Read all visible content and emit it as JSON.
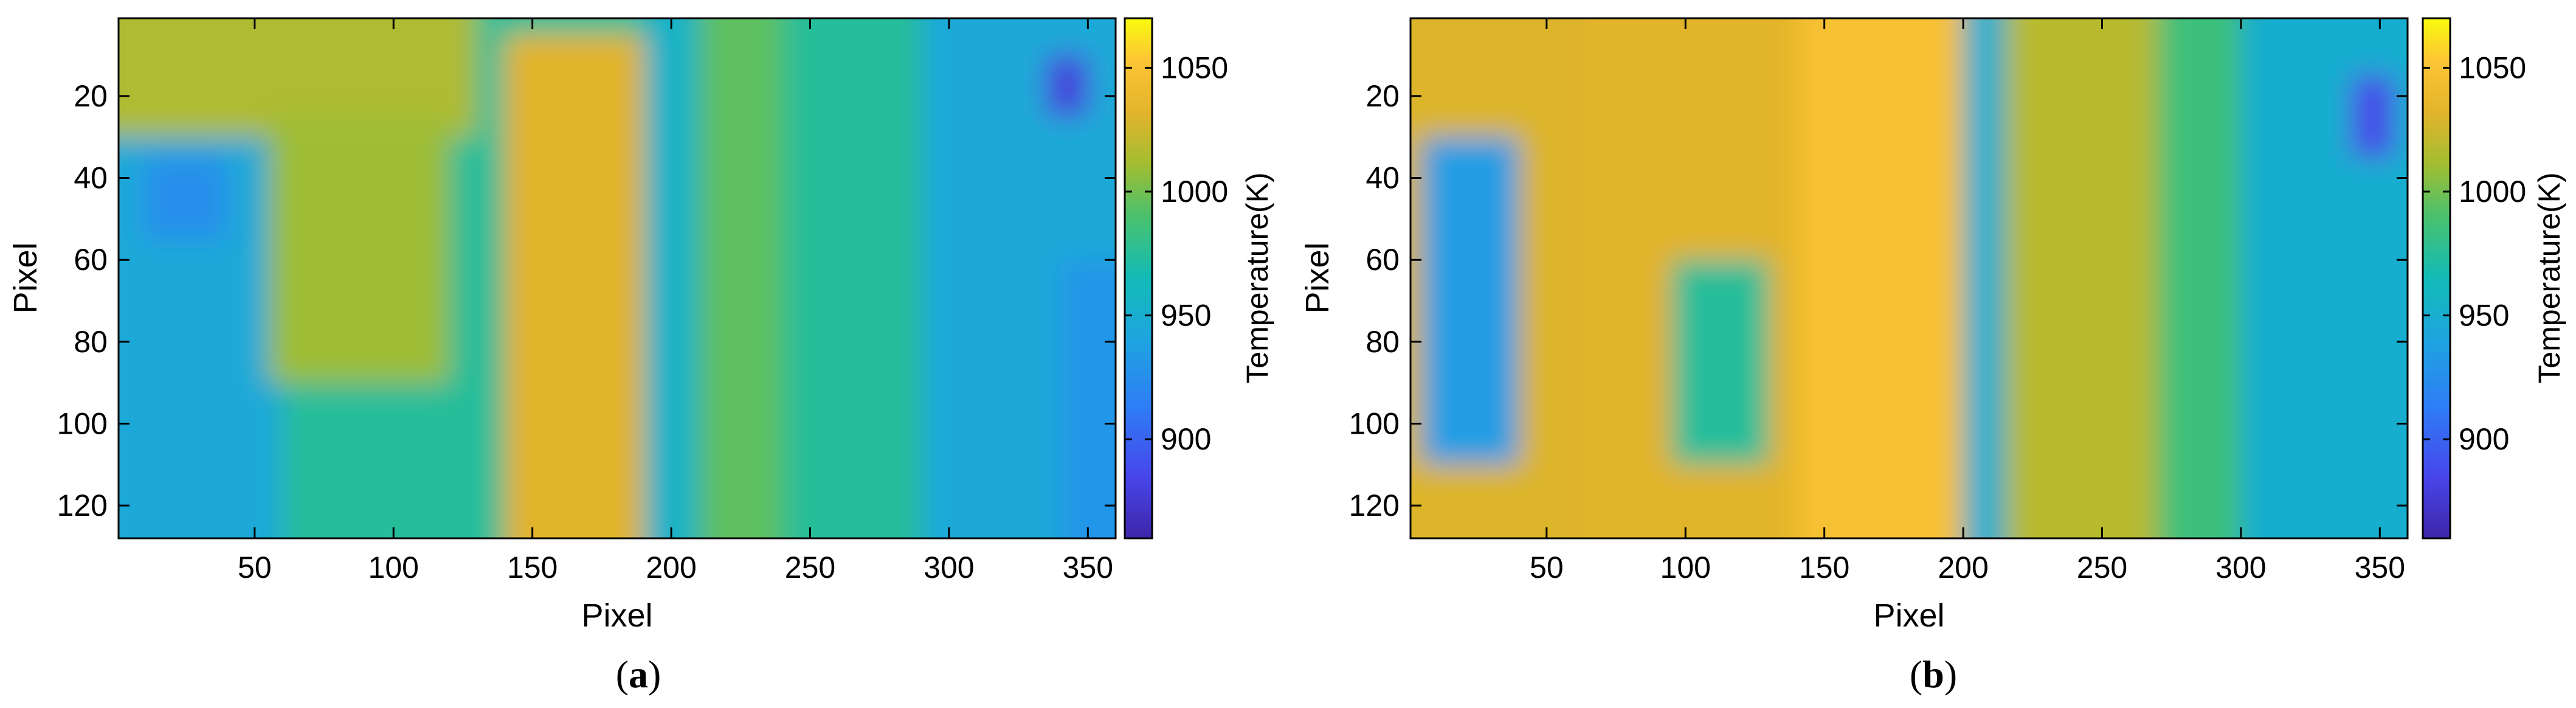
{
  "figure": {
    "caption_left": "(",
    "caption_right": ")"
  },
  "chart_data": [
    {
      "type": "heatmap",
      "panel_label": "a",
      "title": "",
      "xlabel": "Pixel",
      "ylabel": "Pixel",
      "colorbar_label": "Temperature(K)",
      "colormap": "parula",
      "xlim": [
        1,
        360
      ],
      "ylim": [
        1,
        128
      ],
      "y_reversed": true,
      "xticks": [
        50,
        100,
        150,
        200,
        250,
        300,
        350
      ],
      "yticks": [
        20,
        40,
        60,
        80,
        100,
        120
      ],
      "clim": [
        860,
        1070
      ],
      "colorbar_ticks": [
        900,
        950,
        1000,
        1050
      ],
      "regions": [
        {
          "x": [
            0,
            360
          ],
          "y": [
            0,
            128
          ],
          "value": 975
        },
        {
          "x": [
            0,
            60
          ],
          "y": [
            20,
            128
          ],
          "value": 945
        },
        {
          "x": [
            10,
            40
          ],
          "y": [
            35,
            55
          ],
          "value": 925
        },
        {
          "x": [
            0,
            130
          ],
          "y": [
            0,
            30
          ],
          "value": 1015
        },
        {
          "x": [
            55,
            120
          ],
          "y": [
            25,
            90
          ],
          "value": 1010
        },
        {
          "x": [
            140,
            190
          ],
          "y": [
            5,
            128
          ],
          "value": 1032
        },
        {
          "x": [
            190,
            210
          ],
          "y": [
            0,
            128
          ],
          "value": 955
        },
        {
          "x": [
            210,
            240
          ],
          "y": [
            0,
            128
          ],
          "value": 995
        },
        {
          "x": [
            290,
            360
          ],
          "y": [
            0,
            128
          ],
          "value": 945
        },
        {
          "x": [
            335,
            350
          ],
          "y": [
            10,
            25
          ],
          "value": 880
        },
        {
          "x": [
            340,
            360
          ],
          "y": [
            60,
            128
          ],
          "value": 930
        }
      ]
    },
    {
      "type": "heatmap",
      "panel_label": "b",
      "title": "",
      "xlabel": "Pixel",
      "ylabel": "Pixel",
      "colorbar_label": "Temperature(K)",
      "colormap": "parula",
      "xlim": [
        1,
        360
      ],
      "ylim": [
        1,
        128
      ],
      "y_reversed": true,
      "xticks": [
        50,
        100,
        150,
        200,
        250,
        300,
        350
      ],
      "yticks": [
        20,
        40,
        60,
        80,
        100,
        120
      ],
      "clim": [
        860,
        1070
      ],
      "colorbar_ticks": [
        900,
        950,
        1000,
        1050
      ],
      "regions": [
        {
          "x": [
            0,
            360
          ],
          "y": [
            0,
            128
          ],
          "value": 975
        },
        {
          "x": [
            0,
            60
          ],
          "y": [
            0,
            128
          ],
          "value": 1030
        },
        {
          "x": [
            5,
            40
          ],
          "y": [
            30,
            110
          ],
          "value": 935
        },
        {
          "x": [
            60,
            140
          ],
          "y": [
            0,
            128
          ],
          "value": 1032
        },
        {
          "x": [
            95,
            130
          ],
          "y": [
            60,
            110
          ],
          "value": 975
        },
        {
          "x": [
            140,
            200
          ],
          "y": [
            0,
            128
          ],
          "value": 1048
        },
        {
          "x": [
            200,
            220
          ],
          "y": [
            0,
            128
          ],
          "value": 950
        },
        {
          "x": [
            215,
            270
          ],
          "y": [
            0,
            128
          ],
          "value": 1018
        },
        {
          "x": [
            270,
            300
          ],
          "y": [
            0,
            128
          ],
          "value": 985
        },
        {
          "x": [
            300,
            360
          ],
          "y": [
            0,
            128
          ],
          "value": 950
        },
        {
          "x": [
            340,
            355
          ],
          "y": [
            15,
            35
          ],
          "value": 885
        }
      ]
    }
  ]
}
